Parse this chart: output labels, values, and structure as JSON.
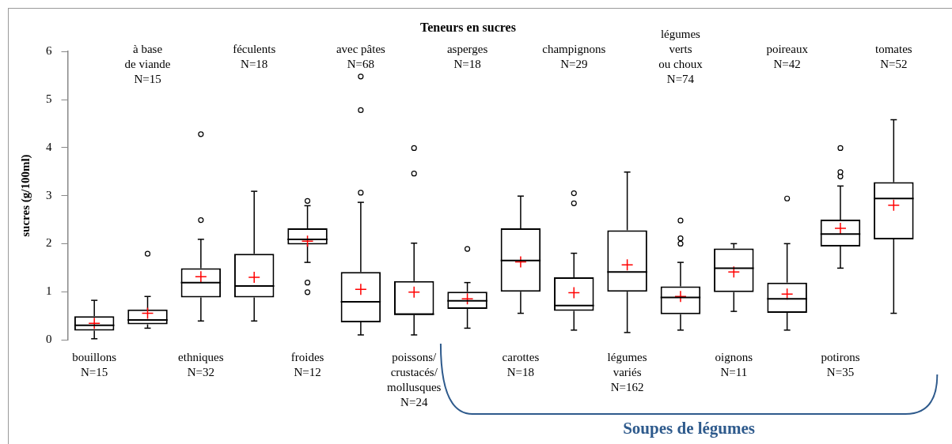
{
  "chart_data": {
    "type": "box",
    "title": "Teneurs en sucres",
    "ylabel": "sucres (g/100ml)",
    "categories": [
      "bouillons\nN=15",
      "à base\nde viande\nN=15",
      "ethniques\nN=32",
      "féculents\nN=18",
      "froides\nN=12",
      "avec pâtes\nN=68",
      "poissons/\ncrustacés/\nmollusques\nN=24",
      "asperges\nN=18",
      "carottes\nN=18",
      "champignons\nN=29",
      "légumes\nvariés\nN=162",
      "légumes\nverts\nou choux\nN=74",
      "oignons\nN=11",
      "poireaux\nN=42",
      "potirons\nN=35",
      "tomates\nN=52"
    ],
    "boxes": [
      {
        "low": 0.02,
        "q1": 0.19,
        "median": 0.3,
        "q3": 0.49,
        "high": 0.82,
        "mean": 0.34
      },
      {
        "low": 0.24,
        "q1": 0.32,
        "median": 0.41,
        "q3": 0.63,
        "high": 0.9,
        "mean": 0.55,
        "outliers": [
          1.79
        ]
      },
      {
        "low": 0.39,
        "q1": 0.88,
        "median": 1.19,
        "q3": 1.49,
        "high": 2.09,
        "mean": 1.31,
        "outliers": [
          2.49,
          4.28
        ]
      },
      {
        "low": 0.39,
        "q1": 0.88,
        "median": 1.12,
        "q3": 1.79,
        "high": 3.09,
        "mean": 1.3
      },
      {
        "low": 1.61,
        "q1": 1.98,
        "median": 2.09,
        "q3": 2.32,
        "high": 2.79,
        "mean": 2.05,
        "outliers": [
          2.89,
          1.19,
          0.99
        ]
      },
      {
        "low": 0.1,
        "q1": 0.36,
        "median": 0.79,
        "q3": 1.41,
        "high": 2.86,
        "mean": 1.05,
        "outliers": [
          3.06,
          4.78,
          5.48
        ]
      },
      {
        "low": 0.1,
        "q1": 0.52,
        "median": 0.53,
        "q3": 1.22,
        "high": 2.01,
        "mean": 0.99,
        "outliers": [
          3.46,
          3.99
        ]
      },
      {
        "low": 0.24,
        "q1": 0.64,
        "median": 0.81,
        "q3": 1.0,
        "high": 1.19,
        "mean": 0.85,
        "outliers": [
          1.89
        ]
      },
      {
        "low": 0.55,
        "q1": 1.0,
        "median": 1.65,
        "q3": 2.32,
        "high": 2.99,
        "mean": 1.62
      },
      {
        "low": 0.2,
        "q1": 0.6,
        "median": 0.71,
        "q3": 1.3,
        "high": 1.8,
        "mean": 0.98,
        "outliers": [
          2.84,
          3.05
        ]
      },
      {
        "low": 0.15,
        "q1": 1.0,
        "median": 1.41,
        "q3": 2.28,
        "high": 3.49,
        "mean": 1.56
      },
      {
        "low": 0.2,
        "q1": 0.53,
        "median": 0.88,
        "q3": 1.11,
        "high": 1.61,
        "mean": 0.9,
        "outliers": [
          2.0,
          2.11,
          2.48
        ]
      },
      {
        "low": 0.59,
        "q1": 0.99,
        "median": 1.49,
        "q3": 1.9,
        "high": 2.0,
        "mean": 1.41
      },
      {
        "low": 0.2,
        "q1": 0.56,
        "median": 0.85,
        "q3": 1.19,
        "high": 2.0,
        "mean": 0.95,
        "outliers": [
          2.94
        ]
      },
      {
        "low": 1.49,
        "q1": 1.94,
        "median": 2.2,
        "q3": 2.5,
        "high": 3.2,
        "mean": 2.32,
        "outliers": [
          3.4,
          3.49,
          3.99
        ]
      },
      {
        "low": 0.55,
        "q1": 2.09,
        "median": 2.94,
        "q3": 3.28,
        "high": 4.58,
        "mean": 2.8
      }
    ],
    "ylim": [
      0,
      6
    ],
    "yticks": [
      0,
      1,
      2,
      3,
      4,
      5,
      6
    ],
    "grid": false,
    "legend": false,
    "annotations": [
      "Soupes de légumes"
    ]
  }
}
